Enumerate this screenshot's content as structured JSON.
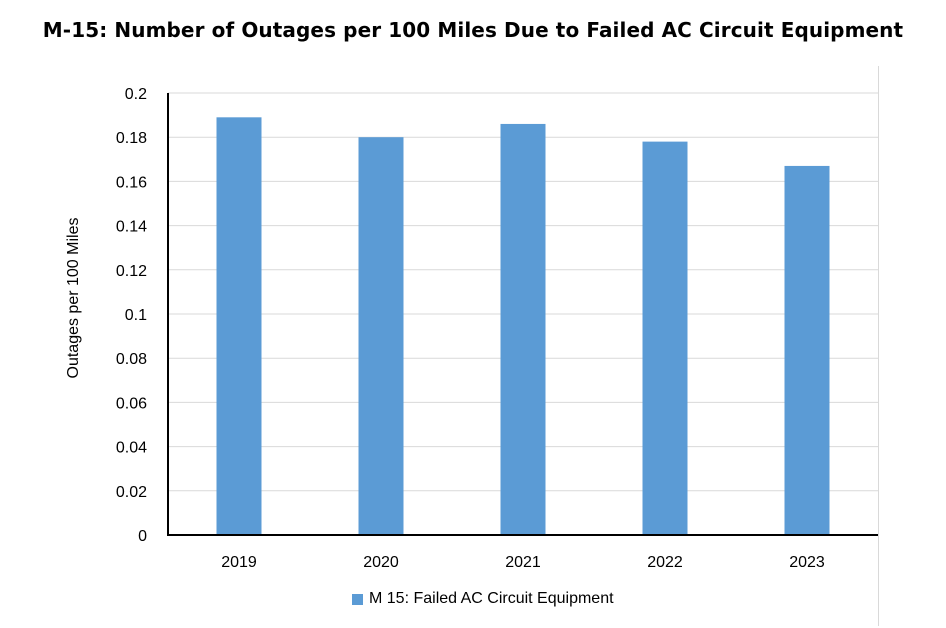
{
  "chart_data": {
    "type": "bar",
    "title": "M-15: Number of Outages per 100 Miles Due to Failed AC Circuit Equipment",
    "xlabel": "",
    "ylabel": "Outages per 100 Miles",
    "categories": [
      "2019",
      "2020",
      "2021",
      "2022",
      "2023"
    ],
    "series": [
      {
        "name": "M 15: Failed AC Circuit Equipment",
        "values": [
          0.189,
          0.18,
          0.186,
          0.178,
          0.167
        ],
        "color": "#5b9bd5"
      }
    ],
    "ylim": [
      0,
      0.2
    ],
    "yticks": [
      "0",
      "0.02",
      "0.04",
      "0.06",
      "0.08",
      "0.1",
      "0.12",
      "0.14",
      "0.16",
      "0.18",
      "0.2"
    ],
    "grid": true,
    "legend_position": "bottom"
  }
}
